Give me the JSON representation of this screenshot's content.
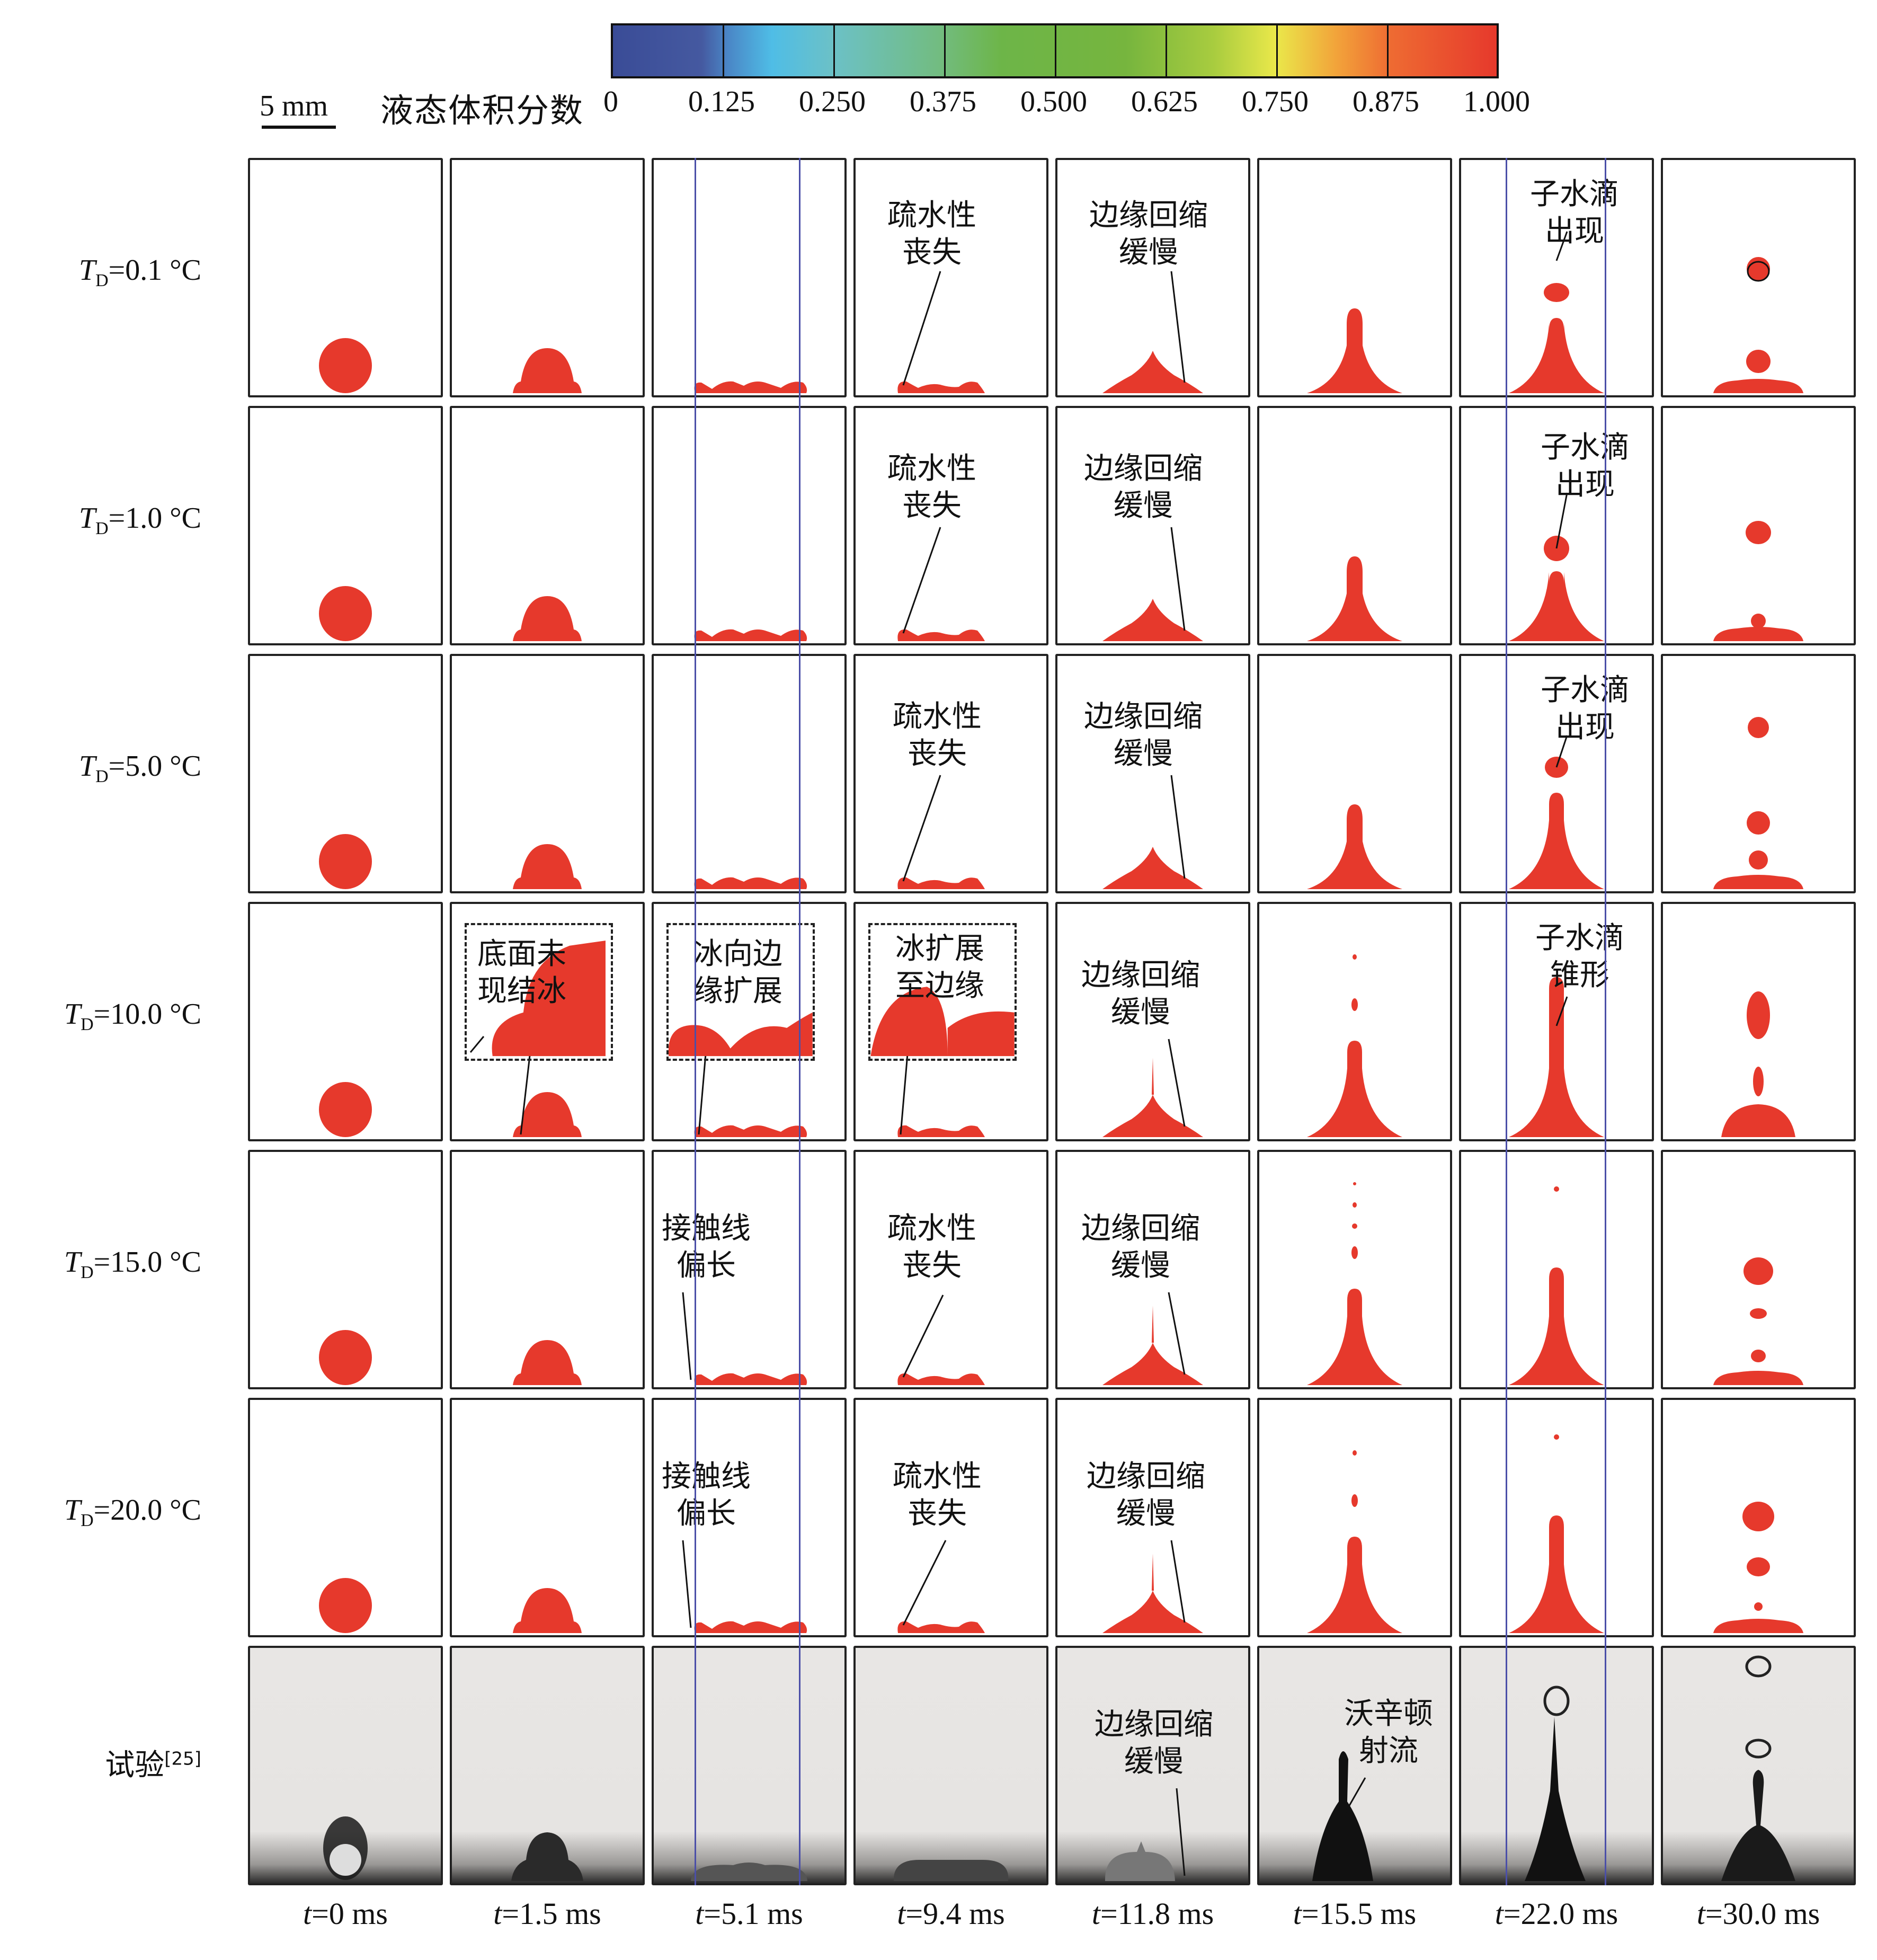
{
  "scale_bar": {
    "label": "5 mm"
  },
  "colorbar": {
    "title": "液态体积分数",
    "ticks": [
      "0",
      "0.125",
      "0.250",
      "0.375",
      "0.500",
      "0.625",
      "0.750",
      "0.875",
      "1.000"
    ],
    "colors": {
      "low": "#3a4c97",
      "mid": "#6db548",
      "high": "#e6392c"
    }
  },
  "rows": [
    {
      "symbol": "T",
      "subscript": "D",
      "value": "=0.1 °C"
    },
    {
      "symbol": "T",
      "subscript": "D",
      "value": "=1.0 °C"
    },
    {
      "symbol": "T",
      "subscript": "D",
      "value": "=5.0 °C"
    },
    {
      "symbol": "T",
      "subscript": "D",
      "value": "=10.0 °C"
    },
    {
      "symbol": "T",
      "subscript": "D",
      "value": "=15.0 °C"
    },
    {
      "symbol": "T",
      "subscript": "D",
      "value": "=20.0 °C"
    },
    {
      "label": "试验",
      "ref": "[25]"
    }
  ],
  "columns": [
    {
      "var": "t",
      "value": "=0 ms"
    },
    {
      "var": "t",
      "value": "=1.5 ms"
    },
    {
      "var": "t",
      "value": "=5.1 ms"
    },
    {
      "var": "t",
      "value": "=9.4 ms"
    },
    {
      "var": "t",
      "value": "=11.8 ms"
    },
    {
      "var": "t",
      "value": "=15.5 ms"
    },
    {
      "var": "t",
      "value": "=22.0  ms"
    },
    {
      "var": "t",
      "value": "=30.0 ms"
    }
  ],
  "annotations": {
    "hydrophobic_loss": [
      "疏水性",
      "丧失"
    ],
    "slow_retraction": [
      "边缘回缩",
      "缓慢"
    ],
    "daughter_appears": [
      "子水滴",
      "出现"
    ],
    "daughter_cone": [
      "子水滴",
      "锥形"
    ],
    "no_ice_bottom": [
      "底面未",
      "现结冰"
    ],
    "ice_to_edge_dir": [
      "冰向边",
      "缘扩展"
    ],
    "ice_reached_edge": [
      "冰扩展",
      "至边缘"
    ],
    "contact_line_long": [
      "接触线",
      "偏长"
    ],
    "worthington_jet": [
      "沃辛顿",
      "射流"
    ]
  },
  "colors": {
    "liquid": "#e6392c",
    "guide_line": "#4b4fa8",
    "frame": "#222222"
  }
}
